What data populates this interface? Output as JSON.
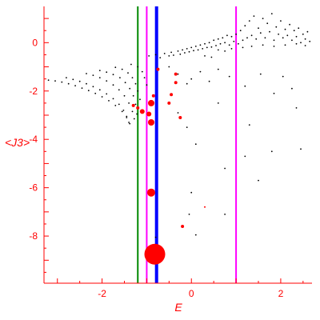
{
  "chart_data": {
    "type": "scatter",
    "xlabel": "E",
    "ylabel": "<J3>",
    "xlim": [
      -3.3,
      2.7
    ],
    "ylim": [
      -9.95,
      1.5
    ],
    "x_ticks": [
      -2,
      0,
      2
    ],
    "y_ticks": [
      0,
      -2,
      -4,
      -6,
      -8
    ],
    "axis_color": "#ff0000",
    "grid": false,
    "vertical_lines": [
      {
        "x": -1.2,
        "color": "#008800"
      },
      {
        "x": -1.0,
        "color": "#ff00ff"
      },
      {
        "x": -0.78,
        "color": "#0000ff"
      },
      {
        "x": 1.0,
        "color": "#ff00ff"
      }
    ],
    "series": [
      {
        "color": "#000000",
        "points": [
          [
            -3.2,
            -1.55
          ],
          [
            -3.05,
            -1.58
          ],
          [
            -2.9,
            -1.63
          ],
          [
            -2.75,
            -1.7
          ],
          [
            -2.6,
            -1.78
          ],
          [
            -2.45,
            -1.88
          ],
          [
            -2.3,
            -1.98
          ],
          [
            -2.15,
            -2.1
          ],
          [
            -2.0,
            -2.24
          ],
          [
            -1.85,
            -2.4
          ],
          [
            -1.7,
            -2.6
          ],
          [
            -1.55,
            -2.85
          ],
          [
            -1.45,
            -3.1
          ],
          [
            -1.38,
            -3.35
          ],
          [
            -2.8,
            -1.45
          ],
          [
            -2.65,
            -1.52
          ],
          [
            -2.5,
            -1.6
          ],
          [
            -2.35,
            -1.7
          ],
          [
            -2.2,
            -1.82
          ],
          [
            -2.05,
            -1.95
          ],
          [
            -1.9,
            -2.12
          ],
          [
            -1.75,
            -2.32
          ],
          [
            -1.62,
            -2.55
          ],
          [
            -1.52,
            -2.8
          ],
          [
            -1.45,
            -3.05
          ],
          [
            -1.4,
            -3.3
          ],
          [
            -2.35,
            -1.28
          ],
          [
            -2.2,
            -1.35
          ],
          [
            -2.05,
            -1.45
          ],
          [
            -1.9,
            -1.58
          ],
          [
            -1.75,
            -1.75
          ],
          [
            -1.62,
            -1.95
          ],
          [
            -1.5,
            -2.2
          ],
          [
            -1.4,
            -2.5
          ],
          [
            -1.32,
            -2.85
          ],
          [
            -1.28,
            -3.15
          ],
          [
            -2.05,
            -1.15
          ],
          [
            -1.9,
            -1.22
          ],
          [
            -1.75,
            -1.32
          ],
          [
            -1.6,
            -1.45
          ],
          [
            -1.48,
            -1.65
          ],
          [
            -1.38,
            -1.9
          ],
          [
            -1.3,
            -2.2
          ],
          [
            -1.25,
            -2.55
          ],
          [
            -1.22,
            -2.95
          ],
          [
            -1.7,
            -1.02
          ],
          [
            -1.55,
            -1.1
          ],
          [
            -1.42,
            -1.25
          ],
          [
            -1.32,
            -1.45
          ],
          [
            -1.25,
            -1.7
          ],
          [
            -1.2,
            -2.0
          ],
          [
            -1.15,
            -2.35
          ],
          [
            -1.35,
            -0.9
          ],
          [
            -1.2,
            -1.0
          ],
          [
            -1.1,
            -1.2
          ],
          [
            -1.05,
            -1.45
          ],
          [
            -1.0,
            -1.75
          ],
          [
            -0.95,
            -0.55
          ],
          [
            -0.8,
            -0.5
          ],
          [
            -0.7,
            -0.62
          ],
          [
            -0.6,
            -0.45
          ],
          [
            -0.5,
            -0.55
          ],
          [
            -0.45,
            -0.4
          ],
          [
            -0.4,
            -0.52
          ],
          [
            -0.3,
            -0.35
          ],
          [
            -0.25,
            -0.48
          ],
          [
            -0.2,
            -0.3
          ],
          [
            -0.15,
            -0.42
          ],
          [
            -0.1,
            -0.25
          ],
          [
            -0.05,
            -0.38
          ],
          [
            0.0,
            -0.2
          ],
          [
            0.05,
            -0.33
          ],
          [
            0.1,
            -0.15
          ],
          [
            0.15,
            -0.3
          ],
          [
            0.2,
            -0.1
          ],
          [
            0.25,
            -0.25
          ],
          [
            0.3,
            -0.05
          ],
          [
            0.35,
            -0.2
          ],
          [
            0.4,
            0.0
          ],
          [
            0.45,
            -0.18
          ],
          [
            0.5,
            0.1
          ],
          [
            0.55,
            -0.12
          ],
          [
            0.6,
            0.15
          ],
          [
            0.65,
            -0.05
          ],
          [
            0.7,
            0.2
          ],
          [
            0.75,
            0.0
          ],
          [
            0.8,
            0.3
          ],
          [
            0.85,
            -0.1
          ],
          [
            0.9,
            0.25
          ],
          [
            0.95,
            0.05
          ],
          [
            1.0,
            0.35
          ],
          [
            1.05,
            -0.05
          ],
          [
            1.1,
            0.5
          ],
          [
            1.15,
            0.1
          ],
          [
            1.2,
            0.7
          ],
          [
            1.25,
            0.2
          ],
          [
            1.3,
            0.9
          ],
          [
            1.35,
            0.3
          ],
          [
            1.4,
            1.1
          ],
          [
            1.45,
            0.15
          ],
          [
            1.5,
            0.6
          ],
          [
            1.55,
            0.4
          ],
          [
            1.6,
            1.0
          ],
          [
            1.65,
            0.2
          ],
          [
            1.7,
            0.8
          ],
          [
            1.75,
            0.45
          ],
          [
            1.8,
            1.2
          ],
          [
            1.85,
            0.1
          ],
          [
            1.9,
            0.65
          ],
          [
            1.95,
            0.35
          ],
          [
            2.0,
            0.9
          ],
          [
            2.05,
            0.2
          ],
          [
            2.1,
            0.55
          ],
          [
            2.15,
            0.3
          ],
          [
            2.2,
            0.75
          ],
          [
            2.25,
            0.1
          ],
          [
            2.3,
            0.5
          ],
          [
            2.35,
            0.25
          ],
          [
            2.4,
            0.6
          ],
          [
            2.45,
            0.0
          ],
          [
            2.5,
            0.35
          ],
          [
            2.55,
            0.15
          ],
          [
            2.6,
            0.45
          ],
          [
            2.65,
            0.05
          ],
          [
            0.3,
            -0.55
          ],
          [
            0.45,
            -0.6
          ],
          [
            0.6,
            -0.3
          ],
          [
            0.75,
            -0.35
          ],
          [
            0.9,
            -0.25
          ],
          [
            1.15,
            -0.2
          ],
          [
            1.35,
            -0.15
          ],
          [
            1.6,
            -0.1
          ],
          [
            1.85,
            -0.15
          ],
          [
            2.1,
            -0.1
          ],
          [
            2.35,
            -0.05
          ],
          [
            2.55,
            -0.12
          ],
          [
            -0.5,
            -1.0
          ],
          [
            -0.3,
            -1.3
          ],
          [
            -0.1,
            -1.7
          ],
          [
            0.0,
            -1.5
          ],
          [
            0.2,
            -1.2
          ],
          [
            0.4,
            -1.6
          ],
          [
            0.6,
            -1.1
          ],
          [
            0.85,
            -1.4
          ],
          [
            1.2,
            -1.8
          ],
          [
            1.55,
            -1.3
          ],
          [
            1.85,
            -2.1
          ],
          [
            2.05,
            -1.4
          ],
          [
            2.25,
            -1.9
          ],
          [
            -0.3,
            -2.9
          ],
          [
            -0.1,
            -3.5
          ],
          [
            0.1,
            -4.2
          ],
          [
            0.6,
            -2.5
          ],
          [
            1.3,
            -3.4
          ],
          [
            1.2,
            -4.7
          ],
          [
            1.8,
            -4.5
          ],
          [
            2.35,
            -2.7
          ],
          [
            2.45,
            -4.4
          ],
          [
            0.75,
            -5.2
          ],
          [
            1.5,
            -5.7
          ],
          [
            0.0,
            -6.2
          ],
          [
            -0.05,
            -7.1
          ],
          [
            0.75,
            -7.1
          ],
          [
            0.1,
            -7.95
          ],
          [
            -0.8,
            -8.05
          ]
        ]
      },
      {
        "color": "#ff0000",
        "points": [
          [
            -0.9,
            -2.5
          ],
          [
            -0.9,
            -3.3
          ],
          [
            -0.9,
            -6.2
          ],
          [
            -0.82,
            -8.75
          ],
          [
            -0.95,
            -2.95
          ],
          [
            -1.1,
            -2.85
          ],
          [
            -0.35,
            -1.65
          ],
          [
            -0.5,
            -2.5
          ],
          [
            -0.45,
            -2.15
          ],
          [
            -0.25,
            -3.1
          ],
          [
            -0.85,
            -2.2
          ],
          [
            -0.75,
            -1.1
          ],
          [
            -0.2,
            -7.6
          ],
          [
            0.3,
            -6.8
          ],
          [
            -0.35,
            -1.3
          ],
          [
            -1.3,
            -2.6
          ],
          [
            -1.2,
            -2.7
          ]
        ],
        "sizes": [
          4,
          4,
          5,
          13,
          3,
          3,
          2,
          2,
          2,
          2,
          2,
          2,
          2,
          1,
          2,
          2,
          2
        ]
      }
    ]
  }
}
